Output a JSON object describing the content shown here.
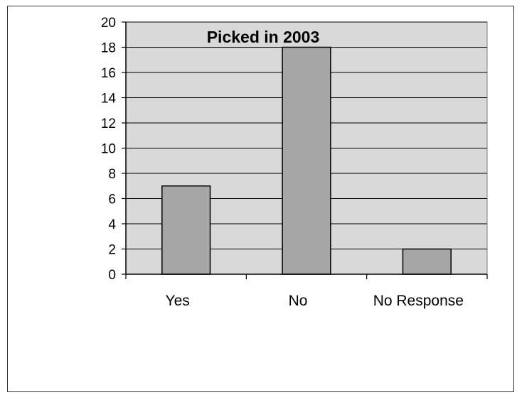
{
  "chart_data": {
    "type": "bar",
    "title": "Picked in 2003",
    "categories": [
      "Yes",
      "No",
      "No Response"
    ],
    "values": [
      7,
      18,
      2
    ],
    "ylim": [
      0,
      20
    ],
    "y_ticks": [
      0,
      2,
      4,
      6,
      8,
      10,
      12,
      14,
      16,
      18,
      20
    ],
    "xlabel": "",
    "ylabel": "",
    "grid": true,
    "legend": "none",
    "colors": {
      "plot_background": "#d9d9d9",
      "bar_fill": "#a6a6a6",
      "bar_stroke": "#000000",
      "gridline": "#000000"
    }
  }
}
